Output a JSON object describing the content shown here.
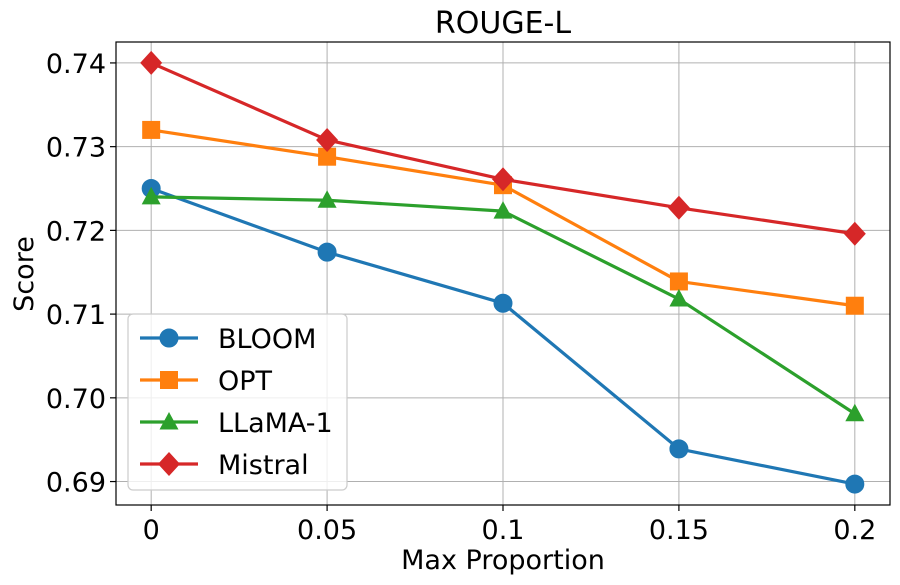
{
  "chart_data": {
    "type": "line",
    "title": "ROUGE-L",
    "xlabel": "Max Proportion",
    "ylabel": "Score",
    "x": [
      0,
      0.05,
      0.1,
      0.15,
      0.2
    ],
    "x_tick_labels": [
      "0",
      "0.05",
      "0.1",
      "0.15",
      "0.2"
    ],
    "y_ticks": [
      0.69,
      0.7,
      0.71,
      0.72,
      0.73,
      0.74
    ],
    "y_tick_labels": [
      "0.69",
      "0.70",
      "0.71",
      "0.72",
      "0.73",
      "0.74"
    ],
    "xlim": [
      -0.01,
      0.21
    ],
    "ylim": [
      0.6872,
      0.7425
    ],
    "grid": true,
    "legend_position": "bottom-left",
    "series": [
      {
        "name": "BLOOM",
        "color": "#1f77b4",
        "marker": "circle",
        "values": [
          0.725,
          0.7174,
          0.7113,
          0.6939,
          0.6897
        ]
      },
      {
        "name": "OPT",
        "color": "#ff7f0e",
        "marker": "square",
        "values": [
          0.732,
          0.7288,
          0.7254,
          0.7139,
          0.711
        ]
      },
      {
        "name": "LLaMA-1",
        "color": "#2ca02c",
        "marker": "triangle",
        "values": [
          0.724,
          0.7236,
          0.7223,
          0.7118,
          0.6981
        ]
      },
      {
        "name": "Mistral",
        "color": "#d62728",
        "marker": "diamond",
        "values": [
          0.74,
          0.7308,
          0.7261,
          0.7227,
          0.7196
        ]
      }
    ]
  }
}
